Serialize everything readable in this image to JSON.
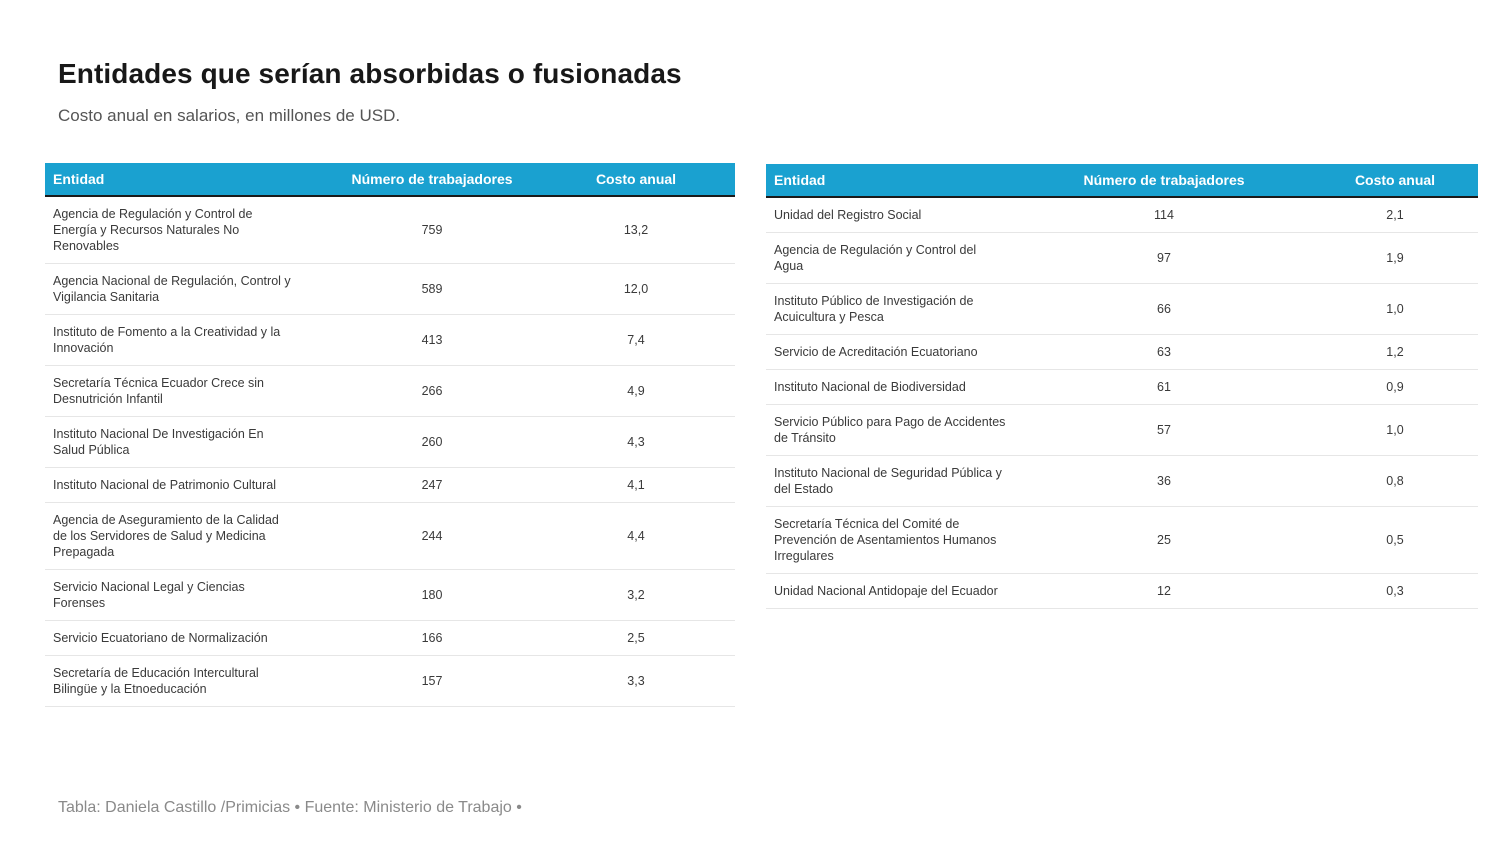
{
  "title": "Entidades que serían absorbidas o fusionadas",
  "subtitle": "Costo anual en salarios, en millones de USD.",
  "footer": "Tabla: Daniela Castillo /Primicias • Fuente: Ministerio de Trabajo •",
  "colors": {
    "header_bg": "#1aa1d0",
    "header_text": "#ffffff"
  },
  "chart_data": [
    {
      "type": "table",
      "columns": [
        "Entidad",
        "Número de trabajadores",
        "Costo anual"
      ],
      "rows": [
        [
          "Agencia de Regulación y Control de Energía y Recursos Naturales No Renovables",
          "759",
          "13,2"
        ],
        [
          "Agencia Nacional de Regulación, Control y Vigilancia Sanitaria",
          "589",
          "12,0"
        ],
        [
          "Instituto de Fomento a la Creatividad y la Innovación",
          "413",
          "7,4"
        ],
        [
          "Secretaría Técnica Ecuador Crece sin Desnutrición Infantil",
          "266",
          "4,9"
        ],
        [
          "Instituto Nacional De Investigación En Salud Pública",
          "260",
          "4,3"
        ],
        [
          "Instituto Nacional de Patrimonio Cultural",
          "247",
          "4,1"
        ],
        [
          "Agencia de Aseguramiento de la Calidad de los Servidores de Salud y Medicina Prepagada",
          "244",
          "4,4"
        ],
        [
          "Servicio Nacional Legal y Ciencias Forenses",
          "180",
          "3,2"
        ],
        [
          "Servicio Ecuatoriano de Normalización",
          "166",
          "2,5"
        ],
        [
          "Secretaría de Educación Intercultural Bilingüe y la Etnoeducación",
          "157",
          "3,3"
        ]
      ]
    },
    {
      "type": "table",
      "columns": [
        "Entidad",
        "Número de trabajadores",
        "Costo anual"
      ],
      "rows": [
        [
          "Unidad del Registro Social",
          "114",
          "2,1"
        ],
        [
          "Agencia de Regulación y Control del Agua",
          "97",
          "1,9"
        ],
        [
          "Instituto Público de Investigación de Acuicultura y Pesca",
          "66",
          "1,0"
        ],
        [
          "Servicio de Acreditación Ecuatoriano",
          "63",
          "1,2"
        ],
        [
          "Instituto Nacional de Biodiversidad",
          "61",
          "0,9"
        ],
        [
          "Servicio Público para Pago de Accidentes de Tránsito",
          "57",
          "1,0"
        ],
        [
          "Instituto Nacional de Seguridad Pública y del Estado",
          "36",
          "0,8"
        ],
        [
          "Secretaría Técnica del Comité de Prevención de Asentamientos Humanos Irregulares",
          "25",
          "0,5"
        ],
        [
          "Unidad Nacional Antidopaje del Ecuador",
          "12",
          "0,3"
        ]
      ]
    }
  ]
}
